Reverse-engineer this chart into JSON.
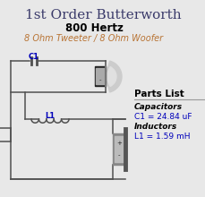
{
  "title": "1st Order Butterworth",
  "subtitle": "800 Hertz",
  "subtext": "8 Ohm Tweeter / 8 Ohm Woofer",
  "parts_list_title": "Parts List",
  "cap_label": "Capacitors",
  "cap_value": "C1 = 24.84 uF",
  "ind_label": "Inductors",
  "ind_value": "L1 = 1.59 mH",
  "c1_label": "C1",
  "l1_label": "L1",
  "title_color": "#3a3a6a",
  "subtitle_color": "#000000",
  "subtext_color": "#b87333",
  "parts_label_color": "#000000",
  "parts_value_color": "#0000bb",
  "parts_italic_color": "#000000",
  "wire_color": "#505050",
  "bg_color": "#e8e8e8",
  "figw": 2.3,
  "figh": 2.2,
  "dpi": 100
}
